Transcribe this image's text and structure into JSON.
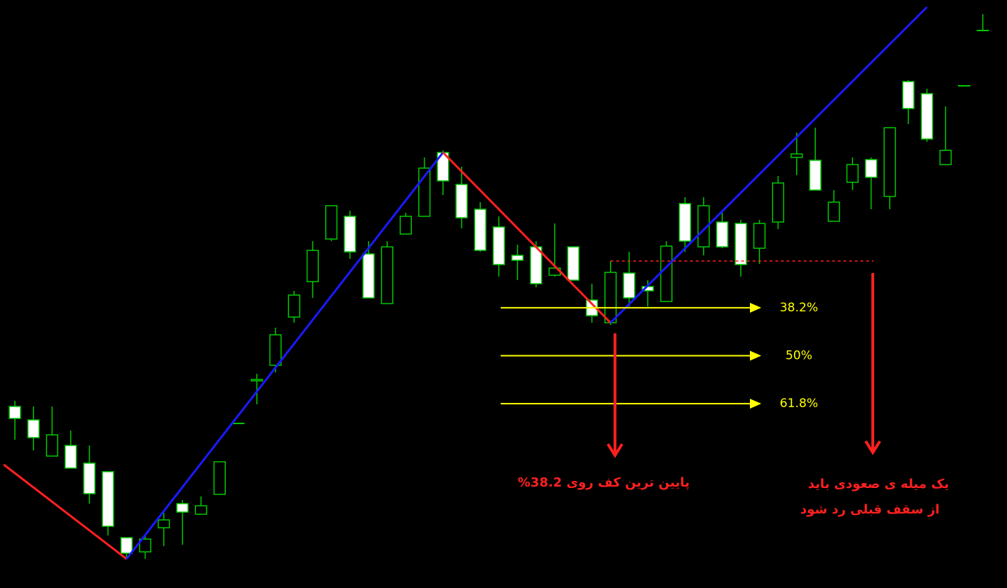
{
  "chart_data": {
    "type": "candlestick",
    "xlim": [
      -0.8,
      53.3
    ],
    "ylim": [
      0,
      829
    ],
    "bull_color": "#00c800",
    "bear_color": "#ffffff",
    "wick_color": "#00c800",
    "ohlc": [
      [
        256,
        264,
        209,
        239
      ],
      [
        237,
        256,
        194,
        212
      ],
      [
        186,
        256,
        186,
        216
      ],
      [
        201,
        222,
        169,
        169
      ],
      [
        176,
        201,
        119,
        133
      ],
      [
        164,
        164,
        74,
        87
      ],
      [
        71,
        71,
        41,
        49
      ],
      [
        51,
        74,
        41,
        69
      ],
      [
        85,
        106,
        59,
        96
      ],
      [
        119,
        124,
        61,
        107
      ],
      [
        104,
        129,
        104,
        116
      ],
      [
        132,
        178,
        132,
        178
      ],
      [
        232,
        232,
        232,
        232
      ],
      [
        292,
        302,
        259,
        294
      ],
      [
        314,
        367,
        304,
        357
      ],
      [
        382,
        419,
        374,
        413
      ],
      [
        432,
        489,
        409,
        476
      ],
      [
        492,
        539,
        489,
        539
      ],
      [
        524,
        532,
        464,
        474
      ],
      [
        471,
        489,
        409,
        409
      ],
      [
        401,
        489,
        401,
        481
      ],
      [
        499,
        529,
        499,
        524
      ],
      [
        524,
        607,
        524,
        592
      ],
      [
        614,
        617,
        554,
        574
      ],
      [
        569,
        594,
        507,
        522
      ],
      [
        534,
        544,
        474,
        476
      ],
      [
        509,
        524,
        439,
        456
      ],
      [
        469,
        484,
        434,
        462
      ],
      [
        481,
        489,
        424,
        429
      ],
      [
        441,
        514,
        439,
        451
      ],
      [
        481,
        481,
        434,
        434
      ],
      [
        406,
        429,
        374,
        384
      ],
      [
        374,
        461,
        371,
        445
      ],
      [
        444,
        474,
        397,
        409
      ],
      [
        425,
        434,
        397,
        419
      ],
      [
        404,
        489,
        404,
        482
      ],
      [
        542,
        551,
        474,
        489
      ],
      [
        481,
        551,
        469,
        539
      ],
      [
        516,
        529,
        479,
        481
      ],
      [
        514,
        519,
        439,
        456
      ],
      [
        479,
        519,
        457,
        514
      ],
      [
        516,
        581,
        506,
        571
      ],
      [
        607,
        642,
        582,
        612
      ],
      [
        603,
        649,
        561,
        561
      ],
      [
        517,
        561,
        517,
        544
      ],
      [
        572,
        607,
        561,
        597
      ],
      [
        604,
        607,
        534,
        579
      ],
      [
        552,
        649,
        534,
        649
      ],
      [
        714,
        716,
        654,
        676
      ],
      [
        697,
        704,
        629,
        633
      ],
      [
        597,
        679,
        597,
        617
      ],
      [
        708,
        708,
        708,
        708
      ],
      [
        786,
        809,
        786,
        786
      ]
    ],
    "zigzag": {
      "x": [
        -0.6,
        6,
        23,
        32,
        49
      ],
      "y": [
        174,
        41,
        614,
        374,
        819
      ],
      "colors": [
        "#ff2020",
        "#1a1aff",
        "#ff2020",
        "#1a1aff"
      ]
    },
    "fib": {
      "levels": [
        38.2,
        50,
        61.8
      ],
      "value_labels": [
        "38.2%",
        "50%",
        "61.8%"
      ],
      "color": "#ffff00"
    },
    "annotations": [
      "پایین ترین کف روی 38.2%",
      "یک میله ی صعودی باید",
      "از سقف قبلی رد شود"
    ],
    "annotation_color": "#ff2020"
  }
}
